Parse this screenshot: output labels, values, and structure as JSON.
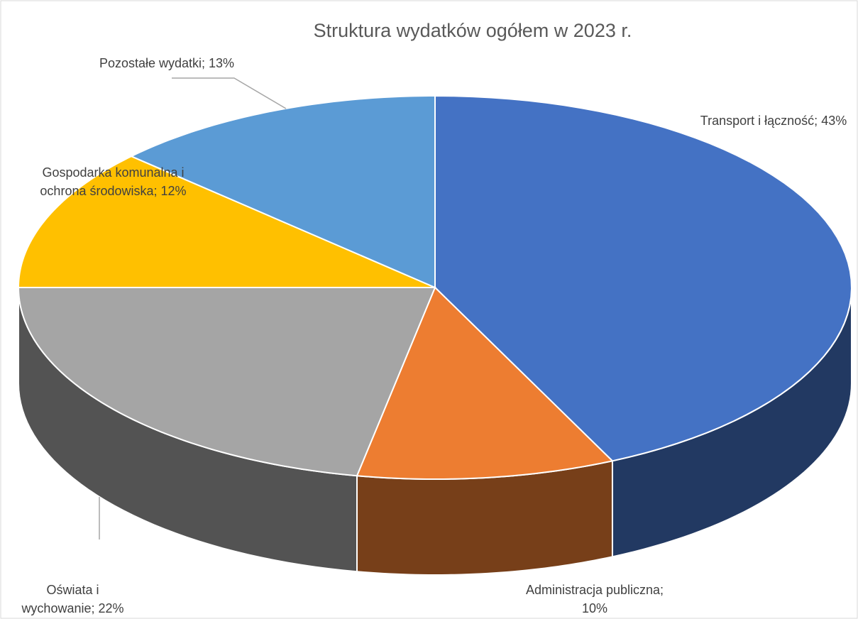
{
  "chart_data": {
    "type": "pie3d",
    "title": "Struktura wydatków ogółem w 2023 r.",
    "categories": [
      "Transport i łączność;",
      "Administracja publiczna;",
      "Oświata i wychowanie;",
      "Gospodarka komunalna i ochrona środowiska;",
      "Pozostałe wydatki;"
    ],
    "values": [
      43,
      10,
      22,
      12,
      13
    ],
    "value_labels": [
      "43%",
      "10%",
      "22%",
      "12%",
      "13%"
    ],
    "colors": [
      "#4472c4",
      "#ed7d31",
      "#a5a5a5",
      "#ffc000",
      "#5b9bd5"
    ]
  }
}
